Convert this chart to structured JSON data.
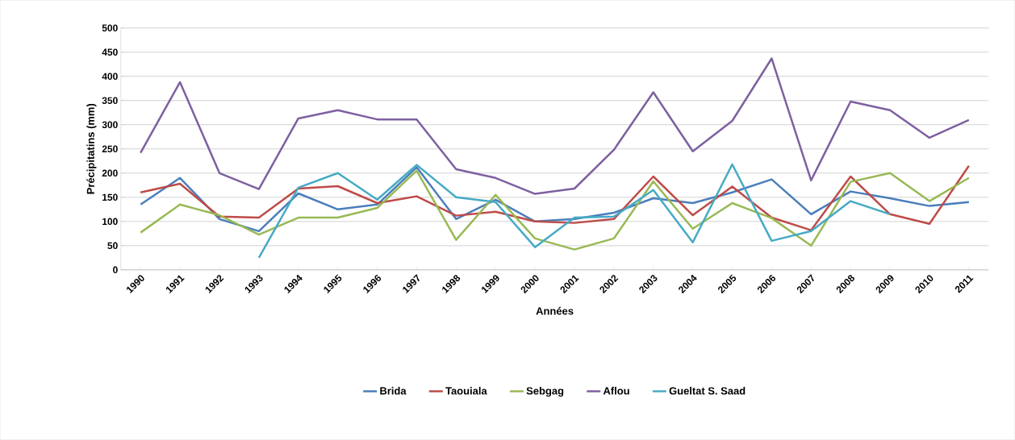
{
  "chart_data": {
    "type": "line",
    "xlabel": "Années",
    "ylabel": "Précipitatins (mm)",
    "categories": [
      "1990",
      "1991",
      "1992",
      "1993",
      "1994",
      "1995",
      "1996",
      "1997",
      "1998",
      "1999",
      "2000",
      "2001",
      "2002",
      "2003",
      "2004",
      "2005",
      "2006",
      "2007",
      "2008",
      "2009",
      "2010",
      "2011"
    ],
    "series": [
      {
        "name": "Brida",
        "color": "#4a7ebb",
        "values": [
          135,
          190,
          105,
          80,
          158,
          125,
          135,
          212,
          105,
          145,
          100,
          105,
          118,
          148,
          138,
          160,
          187,
          115,
          162,
          148,
          132,
          140
        ]
      },
      {
        "name": "Taouiala",
        "color": "#be4b48",
        "values": [
          160,
          178,
          110,
          108,
          168,
          173,
          138,
          152,
          112,
          120,
          100,
          97,
          105,
          193,
          113,
          172,
          108,
          82,
          193,
          115,
          95,
          215
        ]
      },
      {
        "name": "Sebgag",
        "color": "#98b954",
        "values": [
          77,
          135,
          113,
          73,
          108,
          108,
          128,
          205,
          62,
          155,
          65,
          42,
          65,
          183,
          85,
          138,
          107,
          50,
          182,
          200,
          142,
          190
        ]
      },
      {
        "name": "Aflou",
        "color": "#7d60a0",
        "values": [
          242,
          388,
          200,
          167,
          313,
          330,
          311,
          311,
          208,
          190,
          157,
          168,
          248,
          367,
          245,
          308,
          437,
          185,
          348,
          330,
          273,
          310
        ]
      },
      {
        "name": "Gueltat S. Saad",
        "color": "#46aac5",
        "values": [
          null,
          null,
          null,
          25,
          170,
          200,
          145,
          217,
          150,
          140,
          47,
          108,
          110,
          165,
          57,
          218,
          60,
          80,
          142,
          115,
          null,
          null
        ]
      }
    ],
    "ylim": [
      0,
      500
    ],
    "yticks": [
      0,
      50,
      100,
      150,
      200,
      250,
      300,
      350,
      400,
      450,
      500
    ],
    "grid": "y",
    "legend": "bottom",
    "marker": "none",
    "line_style": "solid"
  }
}
